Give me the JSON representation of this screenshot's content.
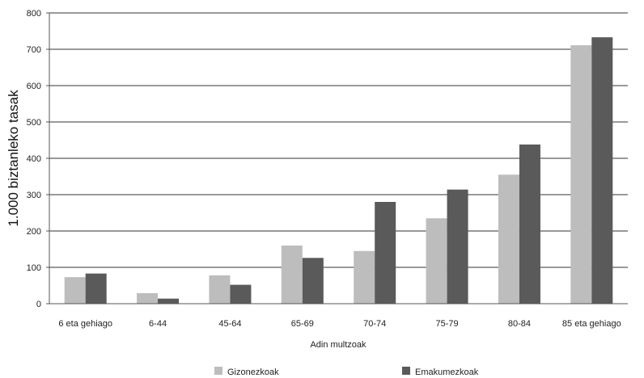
{
  "chart_data": {
    "type": "bar",
    "xlabel": "Adin multzoak",
    "ylabel": "1.000 biztanleko tasak",
    "ylim": [
      0,
      800
    ],
    "yticks": [
      0,
      100,
      200,
      300,
      400,
      500,
      600,
      700,
      800
    ],
    "grid": true,
    "legend_position": "bottom",
    "categories": [
      "6 eta gehiago",
      "6-44",
      "45-64",
      "65-69",
      "70-74",
      "75-79",
      "80-84",
      "85 eta gehiago"
    ],
    "series": [
      {
        "name": "Gizonezkoak",
        "color": "#bdbdbd",
        "values": [
          73,
          29,
          78,
          160,
          145,
          235,
          355,
          711
        ]
      },
      {
        "name": "Emakumezkoak",
        "color": "#5a5a5a",
        "values": [
          83,
          14,
          52,
          126,
          280,
          314,
          438,
          733
        ]
      }
    ]
  }
}
